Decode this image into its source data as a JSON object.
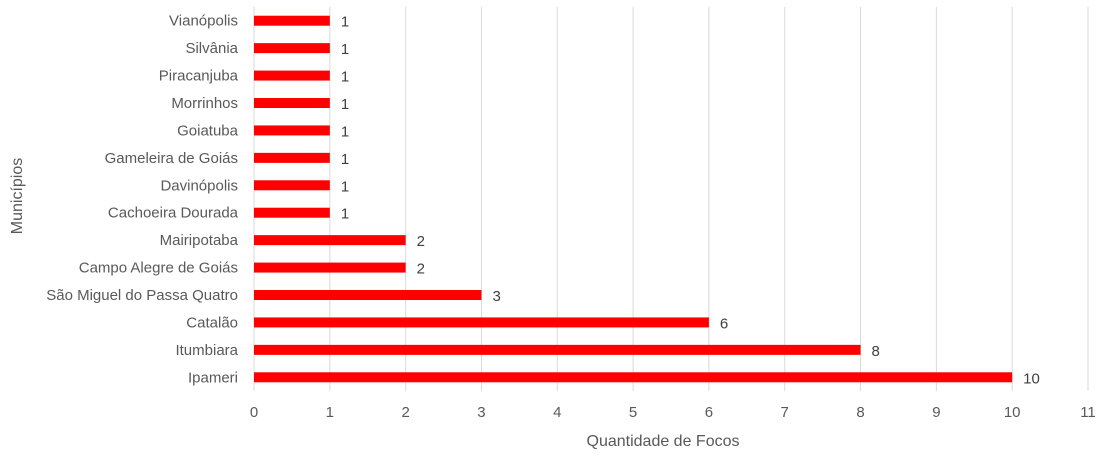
{
  "chart_data": {
    "type": "bar",
    "orientation": "horizontal",
    "categories": [
      "Ipameri",
      "Itumbiara",
      "Catalão",
      "São Miguel do Passa Quatro",
      "Campo Alegre de Goiás",
      "Mairipotaba",
      "Cachoeira Dourada",
      "Davinópolis",
      "Gameleira de Goiás",
      "Goiatuba",
      "Morrinhos",
      "Piracanjuba",
      "Silvânia",
      "Vianópolis"
    ],
    "values": [
      10,
      8,
      6,
      3,
      2,
      2,
      1,
      1,
      1,
      1,
      1,
      1,
      1,
      1
    ],
    "data_labels": [
      "10",
      "8",
      "6",
      "3",
      "2",
      "2",
      "1",
      "1",
      "1",
      "1",
      "1",
      "1",
      "1",
      "1"
    ],
    "title": "",
    "xlabel": "Quantidade de Focos",
    "ylabel": "Municípios",
    "xlim": [
      0,
      11
    ],
    "xticks": [
      "0",
      "1",
      "2",
      "3",
      "4",
      "5",
      "6",
      "7",
      "8",
      "9",
      "10",
      "11"
    ],
    "grid": "vertical",
    "legend": "none",
    "bar_color": "#ff0000",
    "grid_color": "#d9d9d9"
  }
}
